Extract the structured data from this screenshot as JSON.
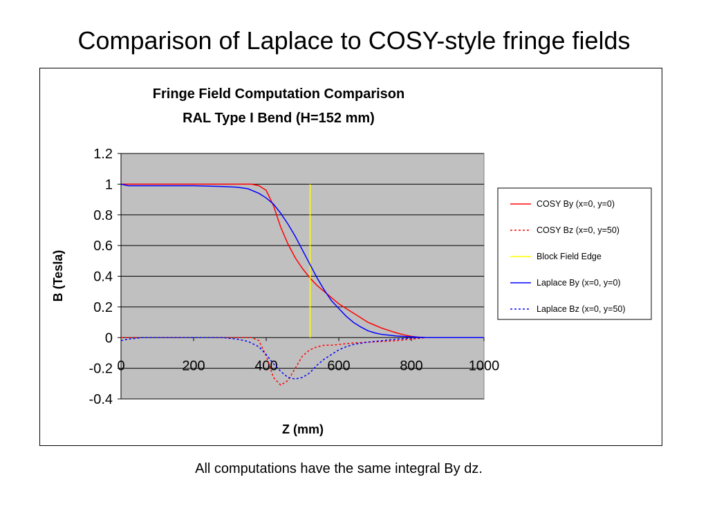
{
  "slide": {
    "title": "Comparison of Laplace to COSY-style fringe fields",
    "caption": "All computations have the same integral By dz."
  },
  "chart_data": {
    "type": "line",
    "title": "Fringe Field Computation Comparison",
    "subtitle": "RAL Type I Bend (H=152 mm)",
    "xlabel": "Z (mm)",
    "ylabel": "B (Tesla)",
    "xlim": [
      0,
      1000
    ],
    "ylim": [
      -0.4,
      1.2
    ],
    "xticks": [
      0,
      200,
      400,
      600,
      800,
      1000
    ],
    "yticks": [
      -0.4,
      -0.2,
      0,
      0.2,
      0.4,
      0.6,
      0.8,
      1,
      1.2
    ],
    "xtick_labels": [
      "0",
      "200",
      "400",
      "600",
      "800",
      "1000"
    ],
    "ytick_labels": [
      "-0.4",
      "-0.2",
      "0",
      "0.2",
      "0.4",
      "0.6",
      "0.8",
      "1",
      "1.2"
    ],
    "grid": "horizontal",
    "plot_background": "#c0c0c0",
    "legend_position": "right",
    "series": [
      {
        "name": "COSY By (x=0, y=0)",
        "color": "#ff0000",
        "dash": "solid",
        "points": [
          [
            0,
            1.0
          ],
          [
            100,
            1.0
          ],
          [
            200,
            1.0
          ],
          [
            300,
            1.0
          ],
          [
            360,
            1.0
          ],
          [
            380,
            0.99
          ],
          [
            400,
            0.96
          ],
          [
            420,
            0.86
          ],
          [
            440,
            0.72
          ],
          [
            460,
            0.61
          ],
          [
            480,
            0.52
          ],
          [
            500,
            0.45
          ],
          [
            520,
            0.39
          ],
          [
            540,
            0.34
          ],
          [
            560,
            0.3
          ],
          [
            580,
            0.26
          ],
          [
            600,
            0.22
          ],
          [
            620,
            0.19
          ],
          [
            640,
            0.16
          ],
          [
            660,
            0.13
          ],
          [
            680,
            0.1
          ],
          [
            700,
            0.08
          ],
          [
            720,
            0.06
          ],
          [
            740,
            0.045
          ],
          [
            760,
            0.03
          ],
          [
            780,
            0.018
          ],
          [
            800,
            0.008
          ],
          [
            820,
            0.002
          ],
          [
            840,
            0.0
          ],
          [
            900,
            0.0
          ],
          [
            1000,
            0.0
          ]
        ]
      },
      {
        "name": "COSY Bz (x=0, y=50)",
        "color": "#ff0000",
        "dash": "dotted",
        "points": [
          [
            0,
            0.0
          ],
          [
            200,
            0.0
          ],
          [
            300,
            0.0
          ],
          [
            360,
            0.0
          ],
          [
            380,
            -0.02
          ],
          [
            400,
            -0.12
          ],
          [
            420,
            -0.26
          ],
          [
            440,
            -0.31
          ],
          [
            460,
            -0.28
          ],
          [
            480,
            -0.2
          ],
          [
            500,
            -0.12
          ],
          [
            520,
            -0.08
          ],
          [
            540,
            -0.06
          ],
          [
            560,
            -0.05
          ],
          [
            580,
            -0.05
          ],
          [
            600,
            -0.045
          ],
          [
            640,
            -0.035
          ],
          [
            680,
            -0.03
          ],
          [
            720,
            -0.025
          ],
          [
            760,
            -0.02
          ],
          [
            800,
            -0.01
          ],
          [
            840,
            0.0
          ],
          [
            1000,
            0.0
          ]
        ]
      },
      {
        "name": "Block Field Edge",
        "color": "#ffff00",
        "dash": "solid",
        "points": [
          [
            521,
            1.0
          ],
          [
            521,
            0.0
          ]
        ]
      },
      {
        "name": "Laplace By (x=0, y=0)",
        "color": "#0000ff",
        "dash": "solid",
        "points": [
          [
            0,
            1.0
          ],
          [
            20,
            0.99
          ],
          [
            100,
            0.99
          ],
          [
            200,
            0.99
          ],
          [
            280,
            0.985
          ],
          [
            320,
            0.98
          ],
          [
            350,
            0.97
          ],
          [
            380,
            0.94
          ],
          [
            400,
            0.91
          ],
          [
            420,
            0.87
          ],
          [
            440,
            0.81
          ],
          [
            460,
            0.74
          ],
          [
            480,
            0.66
          ],
          [
            500,
            0.57
          ],
          [
            520,
            0.48
          ],
          [
            540,
            0.39
          ],
          [
            560,
            0.31
          ],
          [
            580,
            0.24
          ],
          [
            600,
            0.19
          ],
          [
            620,
            0.14
          ],
          [
            640,
            0.1
          ],
          [
            660,
            0.07
          ],
          [
            680,
            0.045
          ],
          [
            700,
            0.03
          ],
          [
            720,
            0.02
          ],
          [
            760,
            0.01
          ],
          [
            800,
            0.005
          ],
          [
            840,
            0.0
          ],
          [
            1000,
            0.0
          ]
        ]
      },
      {
        "name": "Laplace Bz (x=0, y=50)",
        "color": "#0000ff",
        "dash": "dotted",
        "points": [
          [
            0,
            -0.02
          ],
          [
            20,
            -0.01
          ],
          [
            60,
            0.0
          ],
          [
            200,
            0.0
          ],
          [
            280,
            0.0
          ],
          [
            320,
            -0.01
          ],
          [
            350,
            -0.025
          ],
          [
            380,
            -0.06
          ],
          [
            400,
            -0.11
          ],
          [
            420,
            -0.17
          ],
          [
            440,
            -0.22
          ],
          [
            460,
            -0.26
          ],
          [
            480,
            -0.27
          ],
          [
            500,
            -0.26
          ],
          [
            520,
            -0.23
          ],
          [
            540,
            -0.18
          ],
          [
            560,
            -0.14
          ],
          [
            580,
            -0.11
          ],
          [
            600,
            -0.08
          ],
          [
            620,
            -0.06
          ],
          [
            640,
            -0.045
          ],
          [
            680,
            -0.03
          ],
          [
            720,
            -0.02
          ],
          [
            760,
            -0.01
          ],
          [
            800,
            -0.003
          ],
          [
            840,
            0.0
          ],
          [
            1000,
            0.0
          ]
        ]
      }
    ]
  }
}
